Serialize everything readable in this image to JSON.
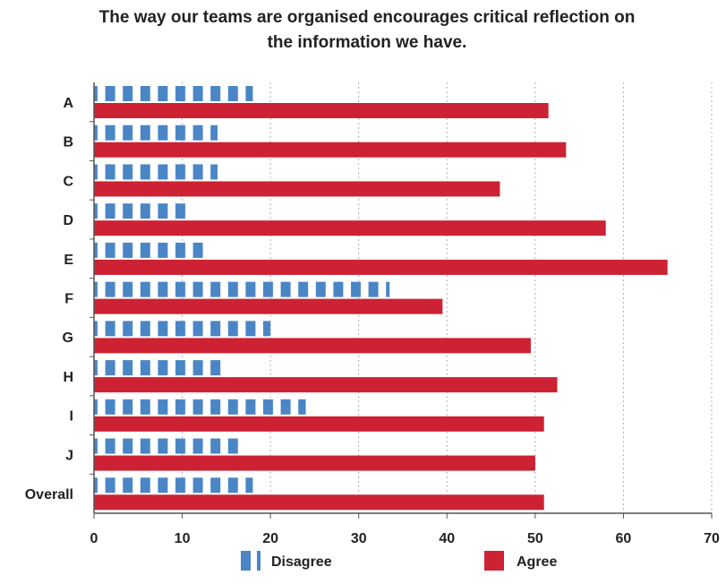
{
  "chart_data": {
    "type": "bar",
    "orientation": "horizontal",
    "title": "The way our teams are organised encourages critical reflection on the information we have.",
    "categories": [
      "A",
      "B",
      "C",
      "D",
      "E",
      "F",
      "G",
      "H",
      "I",
      "J",
      "Overall"
    ],
    "series": [
      {
        "name": "Disagree",
        "color": "#4a86c5",
        "pattern": "dashed",
        "values": [
          18,
          14,
          14,
          10.5,
          12.5,
          33.5,
          20,
          14.5,
          24,
          16.5,
          18
        ]
      },
      {
        "name": "Agree",
        "color": "#cc2233",
        "pattern": "solid",
        "values": [
          51.5,
          53.5,
          46,
          58,
          65,
          39.5,
          49.5,
          52.5,
          51,
          50,
          51
        ]
      }
    ],
    "xlim": [
      0,
      70
    ],
    "xticks": [
      0,
      10,
      20,
      30,
      40,
      50,
      60,
      70
    ],
    "grid": "vertical-dotted",
    "legend_position": "bottom",
    "xlabel": "",
    "ylabel": ""
  }
}
